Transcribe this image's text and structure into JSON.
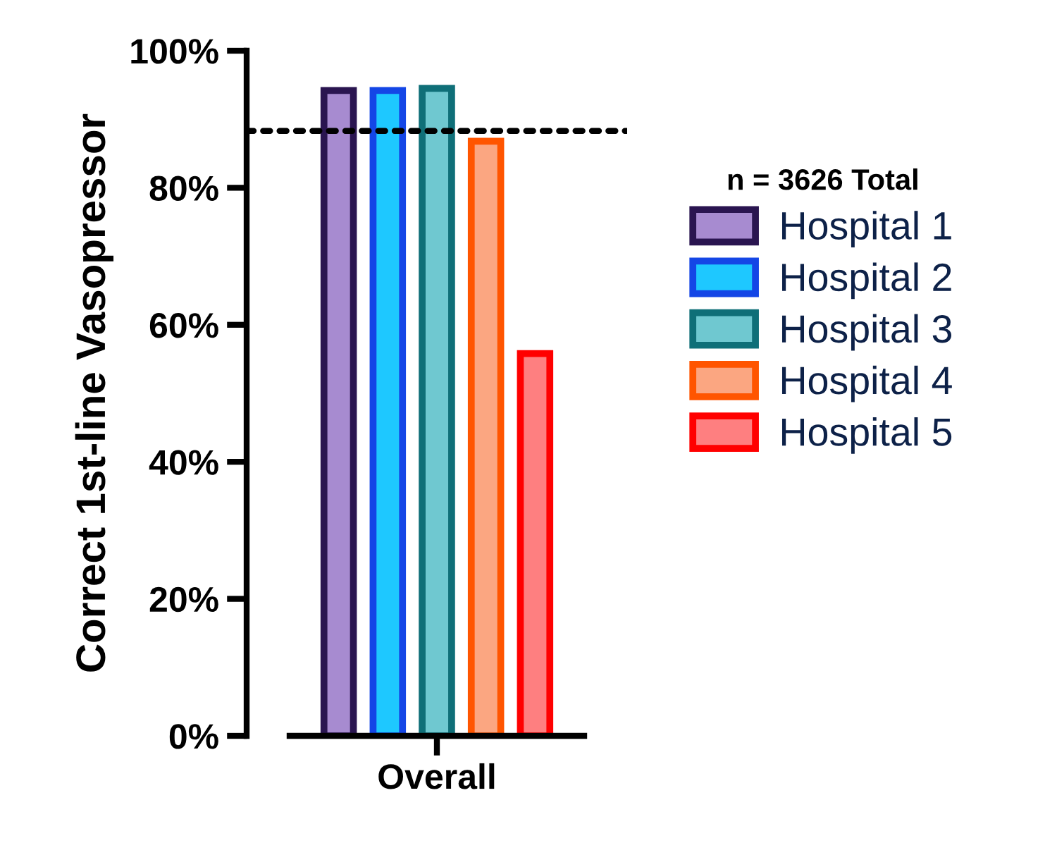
{
  "chart_data": {
    "type": "bar",
    "ylabel": "Correct 1st-line Vasopressor",
    "legend_title": "n = 3626 Total",
    "categories": [
      "Overall"
    ],
    "series": [
      {
        "name": "Hospital 1",
        "color": "#a78bd0",
        "values": [
          94.2
        ]
      },
      {
        "name": "Hospital 2",
        "color": "#1ec8ff",
        "values": [
          94.2
        ]
      },
      {
        "name": "Hospital 3",
        "color": "#6fc8d0",
        "values": [
          94.5
        ]
      },
      {
        "name": "Hospital 4",
        "color": "#fba681",
        "values": [
          86.8
        ]
      },
      {
        "name": "Hospital 5",
        "color": "#fe7f80",
        "values": [
          55.8
        ]
      }
    ],
    "ylim": [
      0,
      100
    ],
    "yticks": [
      {
        "value": 0,
        "label": "0%"
      },
      {
        "value": 20,
        "label": "20%"
      },
      {
        "value": 40,
        "label": "40%"
      },
      {
        "value": 60,
        "label": "60%"
      },
      {
        "value": 80,
        "label": "80%"
      },
      {
        "value": 100,
        "label": "100%"
      }
    ],
    "ref_lines": [
      {
        "axis": "y",
        "value": 88.3,
        "label": null,
        "color": "#000000",
        "line_style": "dotted"
      }
    ],
    "legend": "right",
    "grid": false
  }
}
